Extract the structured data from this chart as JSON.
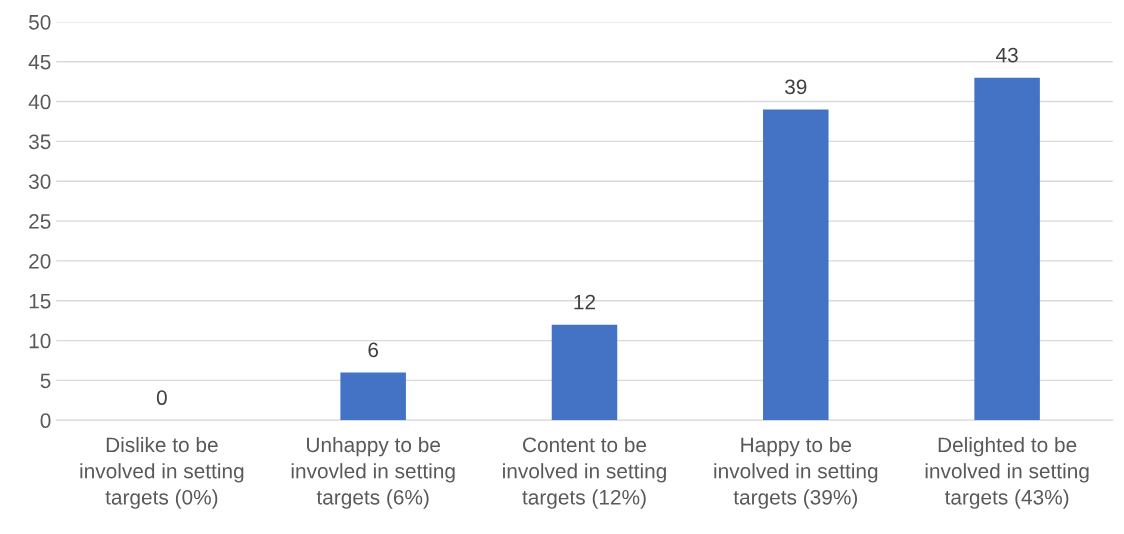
{
  "chart_data": {
    "type": "bar",
    "categories": [
      "Dislike to be\ninvolved in setting\ntargets (0%)",
      "Unhappy to be\ninvovled in setting\ntargets (6%)",
      "Content to be\ninvolved in setting\ntargets (12%)",
      "Happy to be\ninvolved in setting\ntargets (39%)",
      "Delighted to be\ninvolved in setting\ntargets (43%)"
    ],
    "values": [
      0,
      6,
      12,
      39,
      43
    ],
    "color": "#4472c4",
    "ylim": [
      0,
      50
    ],
    "yticks": [
      0,
      5,
      10,
      15,
      20,
      25,
      30,
      35,
      40,
      45,
      50
    ],
    "grid": "y",
    "data_labels": true,
    "legend": false
  }
}
